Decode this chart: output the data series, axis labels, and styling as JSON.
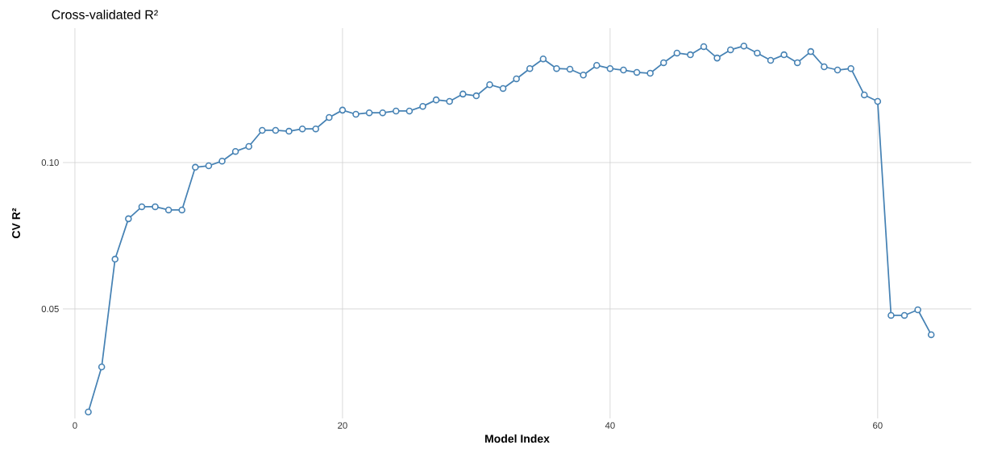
{
  "chart_data": {
    "type": "line",
    "title": "Cross-validated R²",
    "xlabel": "Model Index",
    "ylabel": "CV R²",
    "x": [
      1,
      2,
      3,
      4,
      5,
      6,
      7,
      8,
      9,
      10,
      11,
      12,
      13,
      14,
      15,
      16,
      17,
      18,
      19,
      20,
      21,
      22,
      23,
      24,
      25,
      26,
      27,
      28,
      29,
      30,
      31,
      32,
      33,
      34,
      35,
      36,
      37,
      38,
      39,
      40,
      41,
      42,
      43,
      44,
      45,
      46,
      47,
      48,
      49,
      50,
      51,
      52,
      53,
      54,
      55,
      56,
      57,
      58,
      59,
      60,
      61,
      62,
      63,
      64
    ],
    "series": [
      {
        "color": "#4682b4",
        "values": [
          0.0148,
          0.0302,
          0.067,
          0.0808,
          0.0849,
          0.0849,
          0.0838,
          0.0838,
          0.0984,
          0.0989,
          0.1005,
          0.1038,
          0.1055,
          0.111,
          0.111,
          0.1107,
          0.1115,
          0.1115,
          0.1154,
          0.1179,
          0.1165,
          0.117,
          0.117,
          0.1176,
          0.1176,
          0.1192,
          0.1214,
          0.1209,
          0.1234,
          0.1228,
          0.1266,
          0.1253,
          0.1286,
          0.1321,
          0.1354,
          0.1321,
          0.1319,
          0.1299,
          0.1332,
          0.1321,
          0.1316,
          0.1308,
          0.1305,
          0.1341,
          0.1374,
          0.1368,
          0.1396,
          0.1357,
          0.1385,
          0.1398,
          0.1374,
          0.1349,
          0.1368,
          0.1341,
          0.1379,
          0.1327,
          0.1316,
          0.1321,
          0.1231,
          0.1209,
          0.0478,
          0.0478,
          0.0497,
          0.0412
        ]
      }
    ],
    "xlim": [
      -0.9,
      67
    ],
    "ylim": [
      0.0126,
      0.1459
    ],
    "xticks": [
      0,
      20,
      40,
      60
    ],
    "yticks": [
      0.05,
      {
        "value": 0.1,
        "label": "0.10"
      }
    ],
    "grid": true,
    "marker": "circle",
    "line_style": "solid"
  }
}
